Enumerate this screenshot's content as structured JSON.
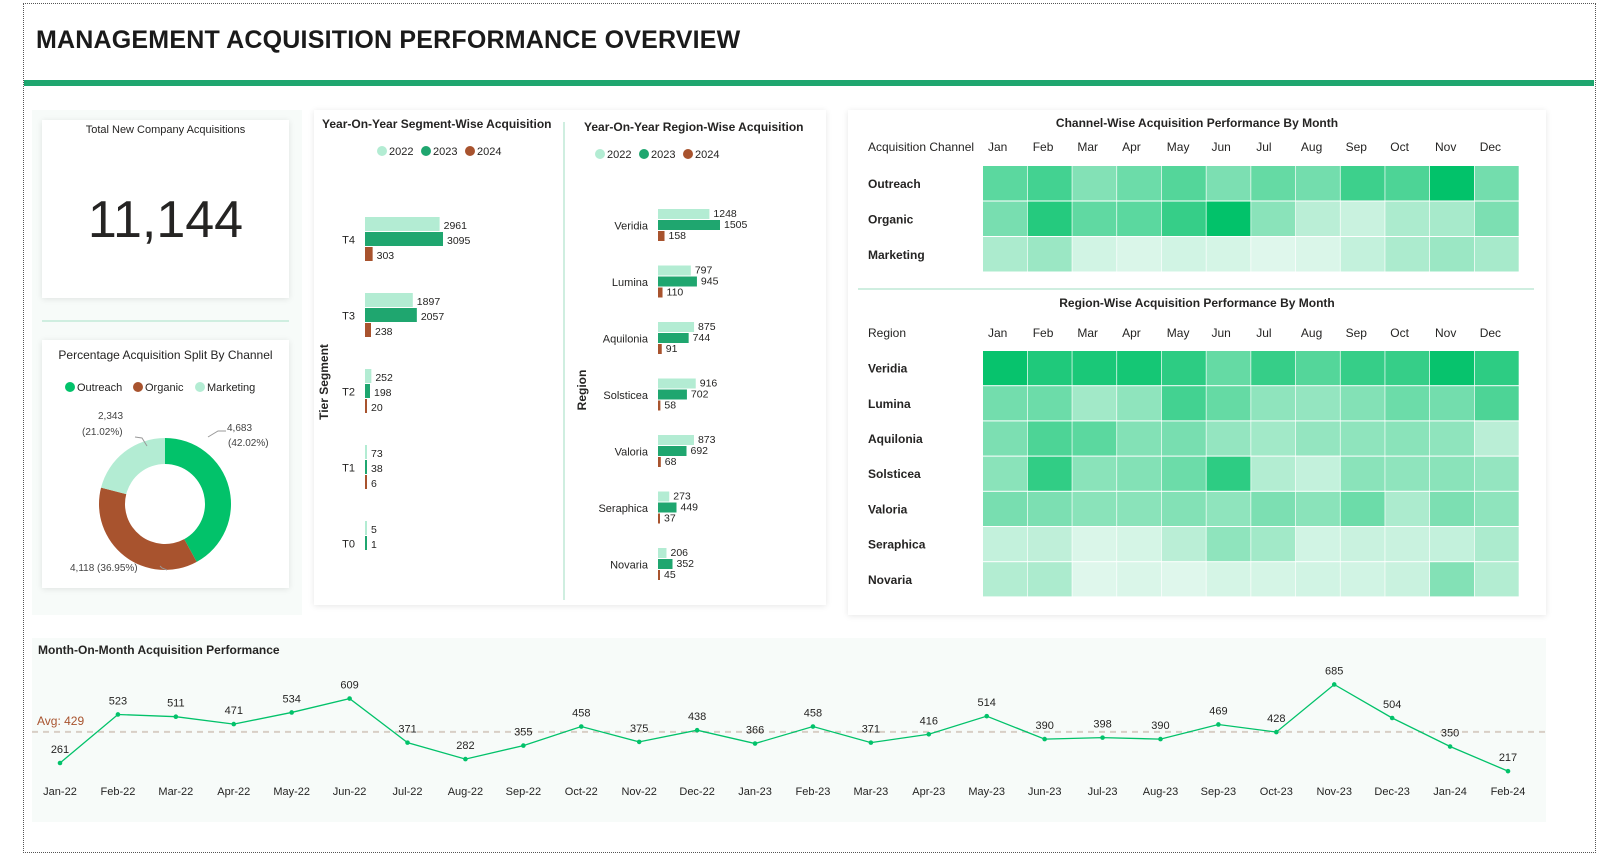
{
  "page_title": "MANAGEMENT ACQUISITION PERFORMANCE OVERVIEW",
  "colors": {
    "c2022": "#b3ecd3",
    "c2023": "#1fa66f",
    "c2024": "#a8532e",
    "outreach": "#02c26a",
    "organic": "#a8532e",
    "marketing": "#b3ecd3",
    "heat": "#02c26a",
    "accent_line": "#1fa66f",
    "avg": "#a8532e"
  },
  "kpi": {
    "title": "Total New Company Acquisitions",
    "value": "11,144"
  },
  "chart_data": [
    {
      "type": "pie",
      "title": "Percentage Acquisition Split By Channel",
      "donut": true,
      "legend": [
        "Outreach",
        "Organic",
        "Marketing"
      ],
      "slices": [
        {
          "label": "Outreach",
          "value": 4683,
          "text_top": "4,683",
          "text_bottom": "(42.02%)"
        },
        {
          "label": "Organic",
          "value": 4118,
          "text_top": "4,118 (36.95%)",
          "text_bottom": ""
        },
        {
          "label": "Marketing",
          "value": 2343,
          "text_top": "2,343",
          "text_bottom": "(21.02%)"
        }
      ]
    },
    {
      "type": "bar",
      "orientation": "horizontal",
      "title": "Year-On-Year Segment-Wise Acquisition",
      "ylabel": "Tier Segment",
      "legend": [
        "2022",
        "2023",
        "2024"
      ],
      "categories": [
        "T4",
        "T3",
        "T2",
        "T1",
        "T0"
      ],
      "series": [
        {
          "name": "2022",
          "values": [
            2961,
            1897,
            252,
            73,
            5
          ]
        },
        {
          "name": "2023",
          "values": [
            3095,
            2057,
            198,
            38,
            1
          ]
        },
        {
          "name": "2024",
          "values": [
            303,
            238,
            20,
            6,
            null
          ]
        }
      ]
    },
    {
      "type": "bar",
      "orientation": "horizontal",
      "title": "Year-On-Year Region-Wise Acquisition",
      "ylabel": "Region",
      "legend": [
        "2022",
        "2023",
        "2024"
      ],
      "categories": [
        "Veridia",
        "Lumina",
        "Aquilonia",
        "Solsticea",
        "Valoria",
        "Seraphica",
        "Novaria"
      ],
      "series": [
        {
          "name": "2022",
          "values": [
            1248,
            797,
            875,
            916,
            873,
            273,
            206
          ]
        },
        {
          "name": "2023",
          "values": [
            1505,
            945,
            744,
            702,
            692,
            449,
            352
          ]
        },
        {
          "name": "2024",
          "values": [
            158,
            110,
            91,
            58,
            68,
            37,
            45
          ]
        }
      ]
    },
    {
      "type": "heatmap",
      "title": "Channel-Wise Acquisition Performance By Month",
      "row_header": "Acquisition Channel",
      "columns": [
        "Jan",
        "Feb",
        "Mar",
        "Apr",
        "May",
        "Jun",
        "Jul",
        "Aug",
        "Sep",
        "Oct",
        "Nov",
        "Dec"
      ],
      "rows": [
        "Outreach",
        "Organic",
        "Marketing"
      ],
      "values": [
        [
          0.62,
          0.72,
          0.45,
          0.55,
          0.65,
          0.48,
          0.58,
          0.52,
          0.75,
          0.68,
          1.0,
          0.52
        ],
        [
          0.5,
          0.85,
          0.6,
          0.62,
          0.78,
          1.0,
          0.42,
          0.22,
          0.15,
          0.28,
          0.3,
          0.48
        ],
        [
          0.28,
          0.35,
          0.12,
          0.08,
          0.12,
          0.1,
          0.06,
          0.08,
          0.18,
          0.28,
          0.35,
          0.3
        ]
      ]
    },
    {
      "type": "heatmap",
      "title": "Region-Wise Acquisition Performance By Month",
      "row_header": "Region",
      "columns": [
        "Jan",
        "Feb",
        "Mar",
        "Apr",
        "May",
        "Jun",
        "Jul",
        "Aug",
        "Sep",
        "Oct",
        "Nov",
        "Dec"
      ],
      "rows": [
        "Veridia",
        "Lumina",
        "Aquilonia",
        "Solsticea",
        "Valoria",
        "Seraphica",
        "Novaria"
      ],
      "values": [
        [
          0.98,
          0.88,
          0.9,
          0.92,
          0.82,
          0.58,
          0.78,
          0.65,
          0.78,
          0.78,
          0.98,
          0.82
        ],
        [
          0.52,
          0.55,
          0.32,
          0.4,
          0.72,
          0.58,
          0.4,
          0.38,
          0.45,
          0.55,
          0.52,
          0.68
        ],
        [
          0.48,
          0.68,
          0.62,
          0.45,
          0.5,
          0.38,
          0.32,
          0.38,
          0.4,
          0.42,
          0.4,
          0.22
        ],
        [
          0.42,
          0.8,
          0.42,
          0.45,
          0.55,
          0.82,
          0.25,
          0.18,
          0.42,
          0.4,
          0.42,
          0.38
        ],
        [
          0.5,
          0.48,
          0.42,
          0.42,
          0.45,
          0.4,
          0.48,
          0.42,
          0.55,
          0.28,
          0.48,
          0.4
        ],
        [
          0.18,
          0.2,
          0.08,
          0.1,
          0.22,
          0.4,
          0.32,
          0.12,
          0.15,
          0.15,
          0.18,
          0.28
        ],
        [
          0.25,
          0.28,
          0.06,
          0.08,
          0.06,
          0.1,
          0.1,
          0.12,
          0.12,
          0.15,
          0.45,
          0.25
        ]
      ]
    },
    {
      "type": "line",
      "title": "Month-On-Month Acquisition Performance",
      "avg_label": "Avg: 429",
      "avg": 429,
      "ylim": [
        180,
        720
      ],
      "x": [
        "Jan-22",
        "Feb-22",
        "Mar-22",
        "Apr-22",
        "May-22",
        "Jun-22",
        "Jul-22",
        "Aug-22",
        "Sep-22",
        "Oct-22",
        "Nov-22",
        "Dec-22",
        "Jan-23",
        "Feb-23",
        "Mar-23",
        "Apr-23",
        "May-23",
        "Jun-23",
        "Jul-23",
        "Aug-23",
        "Sep-23",
        "Oct-23",
        "Nov-23",
        "Dec-23",
        "Jan-24",
        "Feb-24"
      ],
      "values": [
        261,
        523,
        511,
        471,
        534,
        609,
        371,
        282,
        355,
        458,
        375,
        438,
        366,
        458,
        371,
        416,
        514,
        390,
        398,
        390,
        469,
        428,
        685,
        504,
        350,
        217
      ]
    }
  ]
}
